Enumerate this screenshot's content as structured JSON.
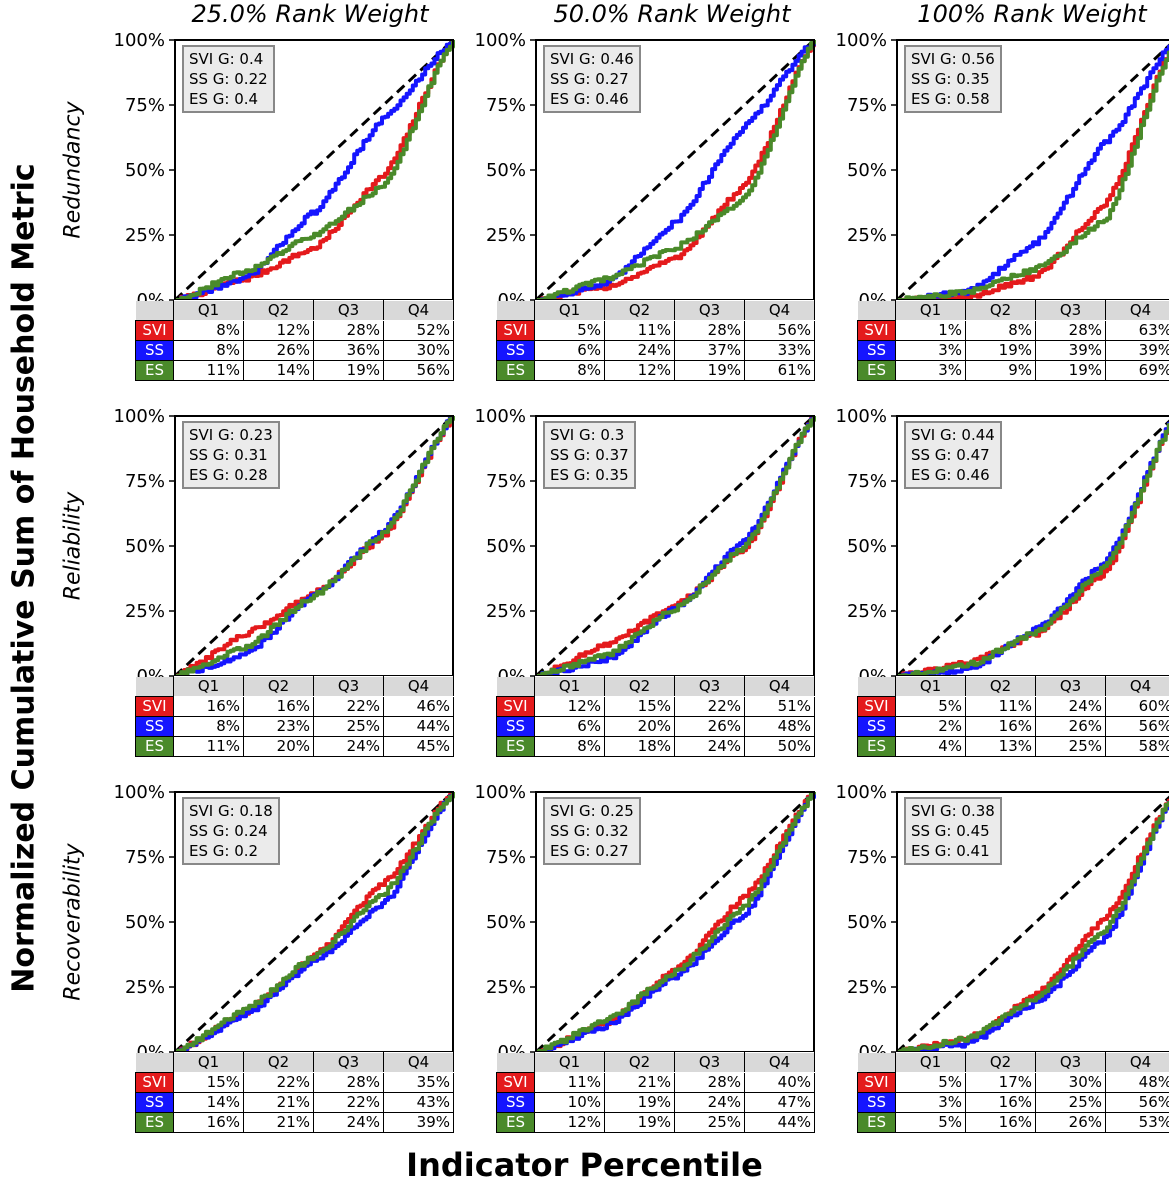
{
  "y_axis_label": "Normalized Cumulative Sum of Household Metric",
  "x_axis_label": "Indicator Percentile",
  "column_titles": [
    "25.0% Rank Weight",
    "50.0% Rank Weight",
    "100% Rank Weight"
  ],
  "row_labels": [
    "Redundancy",
    "Reliability",
    "Recoverability"
  ],
  "series_colors": {
    "SVI": "#e41a1c",
    "SS": "#1515ff",
    "ES": "#4a8a2a"
  },
  "chart_data": [
    {
      "type": "line",
      "metric": "Redundancy",
      "weight": "25.0% Rank Weight",
      "ylim": [
        0,
        100
      ],
      "y_ticks": [
        "0%",
        "25%",
        "50%",
        "75%",
        "100%"
      ],
      "gini": [
        "SVI G: 0.4",
        "SS G: 0.22",
        "ES G: 0.4"
      ],
      "quartiles": [
        "Q1",
        "Q2",
        "Q3",
        "Q4"
      ],
      "series": [
        {
          "name": "SVI",
          "values": [
            "8%",
            "12%",
            "28%",
            "52%"
          ]
        },
        {
          "name": "SS",
          "values": [
            "8%",
            "26%",
            "36%",
            "30%"
          ]
        },
        {
          "name": "ES",
          "values": [
            "11%",
            "14%",
            "19%",
            "56%"
          ]
        }
      ]
    },
    {
      "type": "line",
      "metric": "Redundancy",
      "weight": "50.0% Rank Weight",
      "ylim": [
        0,
        100
      ],
      "y_ticks": [
        "0%",
        "25%",
        "50%",
        "75%",
        "100%"
      ],
      "gini": [
        "SVI G: 0.46",
        "SS G: 0.27",
        "ES G: 0.46"
      ],
      "quartiles": [
        "Q1",
        "Q2",
        "Q3",
        "Q4"
      ],
      "series": [
        {
          "name": "SVI",
          "values": [
            "5%",
            "11%",
            "28%",
            "56%"
          ]
        },
        {
          "name": "SS",
          "values": [
            "6%",
            "24%",
            "37%",
            "33%"
          ]
        },
        {
          "name": "ES",
          "values": [
            "8%",
            "12%",
            "19%",
            "61%"
          ]
        }
      ]
    },
    {
      "type": "line",
      "metric": "Redundancy",
      "weight": "100% Rank Weight",
      "ylim": [
        0,
        100
      ],
      "y_ticks": [
        "0%",
        "25%",
        "50%",
        "75%",
        "100%"
      ],
      "gini": [
        "SVI G: 0.56",
        "SS G: 0.35",
        "ES G: 0.58"
      ],
      "quartiles": [
        "Q1",
        "Q2",
        "Q3",
        "Q4"
      ],
      "series": [
        {
          "name": "SVI",
          "values": [
            "1%",
            "8%",
            "28%",
            "63%"
          ]
        },
        {
          "name": "SS",
          "values": [
            "3%",
            "19%",
            "39%",
            "39%"
          ]
        },
        {
          "name": "ES",
          "values": [
            "3%",
            "9%",
            "19%",
            "69%"
          ]
        }
      ]
    },
    {
      "type": "line",
      "metric": "Reliability",
      "weight": "25.0% Rank Weight",
      "ylim": [
        0,
        100
      ],
      "y_ticks": [
        "0%",
        "25%",
        "50%",
        "75%",
        "100%"
      ],
      "gini": [
        "SVI G: 0.23",
        "SS G: 0.31",
        "ES G: 0.28"
      ],
      "quartiles": [
        "Q1",
        "Q2",
        "Q3",
        "Q4"
      ],
      "series": [
        {
          "name": "SVI",
          "values": [
            "16%",
            "16%",
            "22%",
            "46%"
          ]
        },
        {
          "name": "SS",
          "values": [
            "8%",
            "23%",
            "25%",
            "44%"
          ]
        },
        {
          "name": "ES",
          "values": [
            "11%",
            "20%",
            "24%",
            "45%"
          ]
        }
      ]
    },
    {
      "type": "line",
      "metric": "Reliability",
      "weight": "50.0% Rank Weight",
      "ylim": [
        0,
        100
      ],
      "y_ticks": [
        "0%",
        "25%",
        "50%",
        "75%",
        "100%"
      ],
      "gini": [
        "SVI G: 0.3",
        "SS G: 0.37",
        "ES G: 0.35"
      ],
      "quartiles": [
        "Q1",
        "Q2",
        "Q3",
        "Q4"
      ],
      "series": [
        {
          "name": "SVI",
          "values": [
            "12%",
            "15%",
            "22%",
            "51%"
          ]
        },
        {
          "name": "SS",
          "values": [
            "6%",
            "20%",
            "26%",
            "48%"
          ]
        },
        {
          "name": "ES",
          "values": [
            "8%",
            "18%",
            "24%",
            "50%"
          ]
        }
      ]
    },
    {
      "type": "line",
      "metric": "Reliability",
      "weight": "100% Rank Weight",
      "ylim": [
        0,
        100
      ],
      "y_ticks": [
        "0%",
        "25%",
        "50%",
        "75%",
        "100%"
      ],
      "gini": [
        "SVI G: 0.44",
        "SS G: 0.47",
        "ES G: 0.46"
      ],
      "quartiles": [
        "Q1",
        "Q2",
        "Q3",
        "Q4"
      ],
      "series": [
        {
          "name": "SVI",
          "values": [
            "5%",
            "11%",
            "24%",
            "60%"
          ]
        },
        {
          "name": "SS",
          "values": [
            "2%",
            "16%",
            "26%",
            "56%"
          ]
        },
        {
          "name": "ES",
          "values": [
            "4%",
            "13%",
            "25%",
            "58%"
          ]
        }
      ]
    },
    {
      "type": "line",
      "metric": "Recoverability",
      "weight": "25.0% Rank Weight",
      "ylim": [
        0,
        100
      ],
      "y_ticks": [
        "0%",
        "25%",
        "50%",
        "75%",
        "100%"
      ],
      "gini": [
        "SVI G: 0.18",
        "SS G: 0.24",
        "ES G: 0.2"
      ],
      "quartiles": [
        "Q1",
        "Q2",
        "Q3",
        "Q4"
      ],
      "series": [
        {
          "name": "SVI",
          "values": [
            "15%",
            "22%",
            "28%",
            "35%"
          ]
        },
        {
          "name": "SS",
          "values": [
            "14%",
            "21%",
            "22%",
            "43%"
          ]
        },
        {
          "name": "ES",
          "values": [
            "16%",
            "21%",
            "24%",
            "39%"
          ]
        }
      ]
    },
    {
      "type": "line",
      "metric": "Recoverability",
      "weight": "50.0% Rank Weight",
      "ylim": [
        0,
        100
      ],
      "y_ticks": [
        "0%",
        "25%",
        "50%",
        "75%",
        "100%"
      ],
      "gini": [
        "SVI G: 0.25",
        "SS G: 0.32",
        "ES G: 0.27"
      ],
      "quartiles": [
        "Q1",
        "Q2",
        "Q3",
        "Q4"
      ],
      "series": [
        {
          "name": "SVI",
          "values": [
            "11%",
            "21%",
            "28%",
            "40%"
          ]
        },
        {
          "name": "SS",
          "values": [
            "10%",
            "19%",
            "24%",
            "47%"
          ]
        },
        {
          "name": "ES",
          "values": [
            "12%",
            "19%",
            "25%",
            "44%"
          ]
        }
      ]
    },
    {
      "type": "line",
      "metric": "Recoverability",
      "weight": "100% Rank Weight",
      "ylim": [
        0,
        100
      ],
      "y_ticks": [
        "0%",
        "25%",
        "50%",
        "75%",
        "100%"
      ],
      "gini": [
        "SVI G: 0.38",
        "SS G: 0.45",
        "ES G: 0.41"
      ],
      "quartiles": [
        "Q1",
        "Q2",
        "Q3",
        "Q4"
      ],
      "series": [
        {
          "name": "SVI",
          "values": [
            "5%",
            "17%",
            "30%",
            "48%"
          ]
        },
        {
          "name": "SS",
          "values": [
            "3%",
            "16%",
            "25%",
            "56%"
          ]
        },
        {
          "name": "ES",
          "values": [
            "5%",
            "16%",
            "26%",
            "53%"
          ]
        }
      ]
    }
  ]
}
